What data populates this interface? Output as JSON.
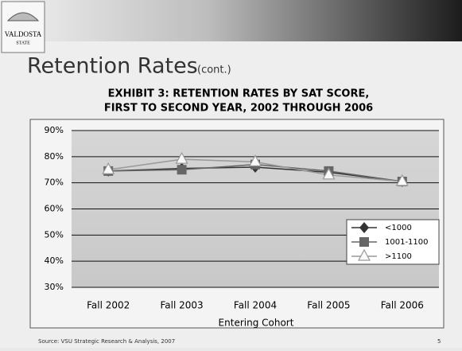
{
  "slide": {
    "logo": [
      "VALDOSTA",
      "STATE"
    ],
    "title": "Retention Rates",
    "title_note": "(cont.)",
    "source": "Source: VSU Strategic Research & Analysis, 2007",
    "page": "5"
  },
  "chart_data": {
    "type": "line",
    "title": [
      "EXHIBIT 3: RETENTION RATES BY SAT SCORE,",
      "FIRST TO SECOND YEAR, 2002 THROUGH 2006"
    ],
    "x_label": "Entering Cohort",
    "categories": [
      "Fall 2002",
      "Fall 2003",
      "Fall 2004",
      "Fall 2005",
      "Fall 2006"
    ],
    "series": [
      {
        "name": "<1000",
        "color": "#333333",
        "marker": "diamond",
        "values": [
          74.5,
          75.5,
          76,
          74,
          70.5
        ]
      },
      {
        "name": "1001-1100",
        "color": "#666666",
        "marker": "square",
        "values": [
          74.5,
          75,
          77,
          74.5,
          70.5
        ]
      },
      {
        "name": ">1100",
        "color": "#999999",
        "marker": "triangle",
        "values": [
          75,
          79,
          78,
          73,
          70.5
        ]
      }
    ],
    "ylim": [
      30,
      90
    ],
    "yticks": [
      {
        "value": 30,
        "label": "30%"
      },
      {
        "value": 40,
        "label": "40%"
      },
      {
        "value": 50,
        "label": "50%"
      },
      {
        "value": 60,
        "label": "60%"
      },
      {
        "value": 70,
        "label": "70%"
      },
      {
        "value": 80,
        "label": "80%"
      },
      {
        "value": 90,
        "label": "90%"
      }
    ],
    "grid": true,
    "legend": "right"
  }
}
